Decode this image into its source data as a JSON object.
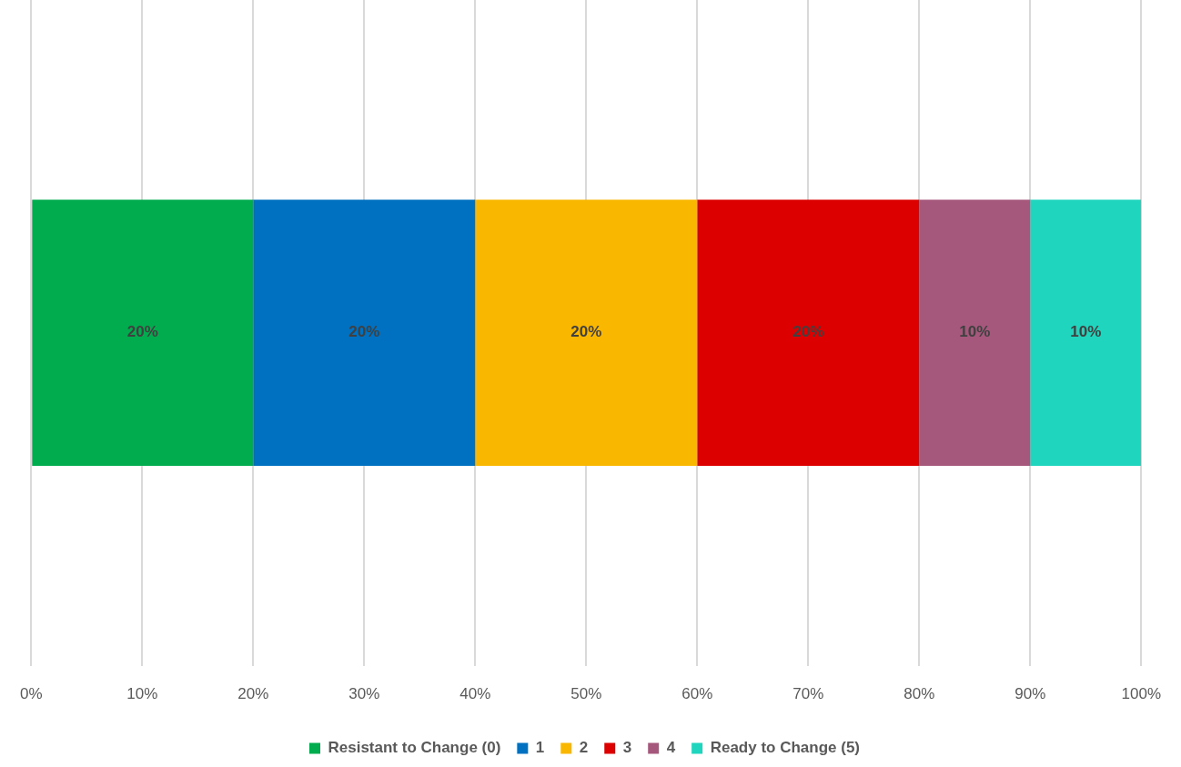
{
  "chart_data": {
    "type": "bar",
    "orientation": "horizontal",
    "stacked": true,
    "categories": [
      null
    ],
    "series": [
      {
        "name": "Resistant to Change (0)",
        "color": "#00ac4e",
        "values": [
          20
        ],
        "value_labels": [
          "20%"
        ]
      },
      {
        "name": "1",
        "color": "#0070c0",
        "values": [
          20
        ],
        "value_labels": [
          "20%"
        ]
      },
      {
        "name": "2",
        "color": "#f9b700",
        "values": [
          20
        ],
        "value_labels": [
          "20%"
        ]
      },
      {
        "name": "3",
        "color": "#dc0000",
        "values": [
          20
        ],
        "value_labels": [
          "20%"
        ]
      },
      {
        "name": "4",
        "color": "#a6587c",
        "values": [
          10
        ],
        "value_labels": [
          "10%"
        ]
      },
      {
        "name": "Ready to Change (5)",
        "color": "#1fd5bd",
        "values": [
          10
        ],
        "value_labels": [
          "10%"
        ]
      }
    ],
    "xlim": [
      0,
      100
    ],
    "xticks": [
      {
        "value": 0,
        "label": "0%"
      },
      {
        "value": 10,
        "label": "10%"
      },
      {
        "value": 20,
        "label": "20%"
      },
      {
        "value": 30,
        "label": "30%"
      },
      {
        "value": 40,
        "label": "40%"
      },
      {
        "value": 50,
        "label": "50%"
      },
      {
        "value": 60,
        "label": "60%"
      },
      {
        "value": 70,
        "label": "70%"
      },
      {
        "value": 80,
        "label": "80%"
      },
      {
        "value": 90,
        "label": "90%"
      },
      {
        "value": 100,
        "label": "100%"
      }
    ],
    "grid": "x",
    "legend": "bottom"
  }
}
